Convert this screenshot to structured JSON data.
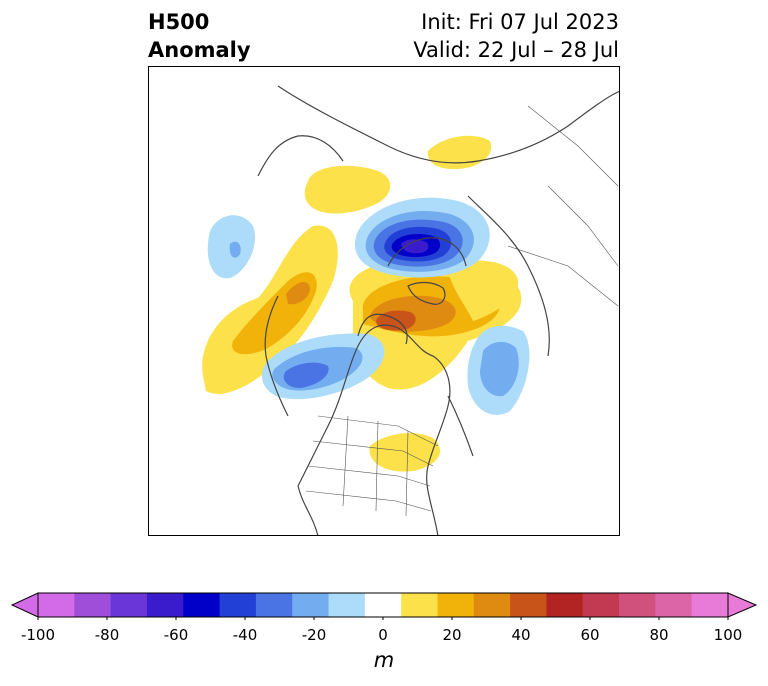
{
  "header": {
    "field_line1": "H500",
    "field_line2": "Anomaly",
    "init_text": "Init: Fri 07 Jul 2023",
    "valid_text": "Valid: 22 Jul – 28 Jul"
  },
  "colorbar": {
    "unit": "m",
    "min": -100,
    "max": 100,
    "tick_labels": [
      "-100",
      "-80",
      "-60",
      "-40",
      "-20",
      "0",
      "20",
      "40",
      "60",
      "80",
      "100"
    ],
    "colors": [
      "#d36be8",
      "#9e4ed9",
      "#6a36d8",
      "#3a1ccd",
      "#0000c8",
      "#2340d6",
      "#4a73e4",
      "#74acf0",
      "#addcfa",
      "#ffffff",
      "#fde14a",
      "#f1b20a",
      "#df8a11",
      "#c95419",
      "#b22424",
      "#c23a52",
      "#d0517b",
      "#dc65a8",
      "#e87ad8"
    ],
    "extend_low_color": "#d36be8",
    "extend_high_color": "#e87ad8"
  }
}
